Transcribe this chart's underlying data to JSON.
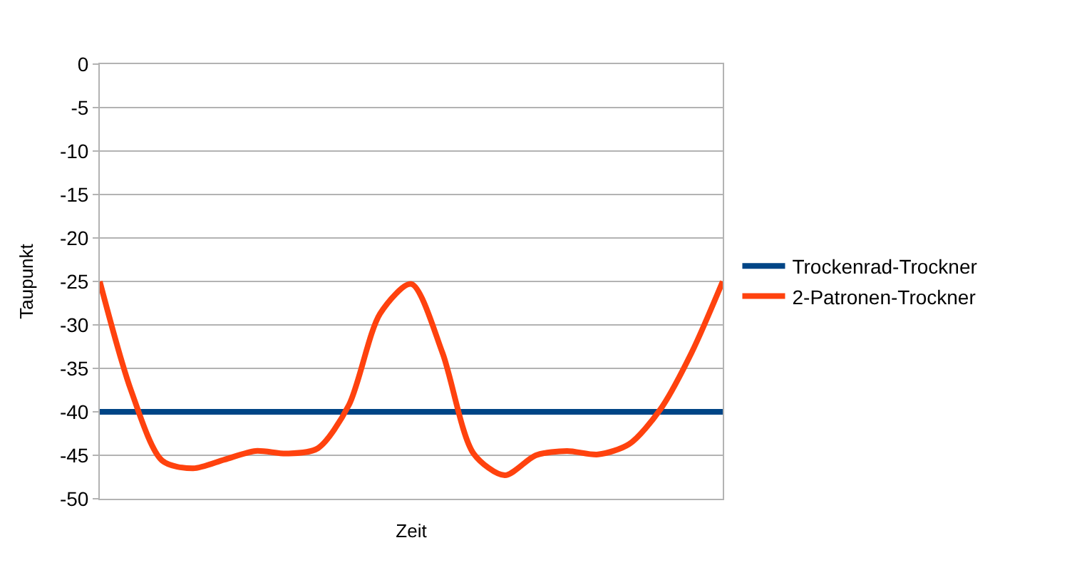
{
  "chart_data": {
    "type": "line",
    "xlabel": "Zeit",
    "ylabel": "Taupunkt",
    "categories": [
      null,
      null,
      null,
      null,
      null,
      null,
      null,
      null,
      null,
      null,
      null,
      null,
      null,
      null,
      null,
      null,
      null,
      null,
      null,
      null,
      null
    ],
    "series": [
      {
        "name": "Trockenrad-Trockner",
        "color": "#004586",
        "values": [
          -40,
          -40,
          -40,
          -40,
          -40,
          -40,
          -40,
          -40,
          -40,
          -40,
          -40,
          -40,
          -40,
          -40,
          -40,
          -40,
          -40,
          -40,
          -40,
          -40,
          -40
        ]
      },
      {
        "name": "2-Patronen-Trockner",
        "color": "#ff420e",
        "values": [
          -25,
          -37.5,
          -45.6,
          -46.5,
          -45.5,
          -44.5,
          -44.8,
          -44.2,
          -39.2,
          -28.7,
          -25.3,
          -33.2,
          -44.8,
          -47.3,
          -45,
          -44.5,
          -44.9,
          -43.7,
          -39.7,
          -33.2,
          -25
        ]
      }
    ],
    "ylim": [
      -50,
      0
    ],
    "yticks": [
      -50,
      -45,
      -40,
      -35,
      -30,
      -25,
      -20,
      -15,
      -10,
      -5,
      0
    ],
    "grid": "y",
    "legend": "right",
    "marker": "none",
    "line_style": "solid"
  }
}
